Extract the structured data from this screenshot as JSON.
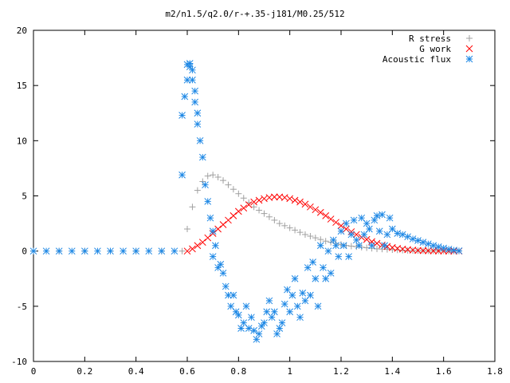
{
  "chart_data": {
    "type": "scatter",
    "title": "m2/n1.5/q2.0/r-+.35-j181/M0.25/512",
    "xlabel": "",
    "ylabel": "",
    "xlim": [
      0,
      1.8
    ],
    "ylim": [
      -10,
      20
    ],
    "x_ticks": [
      "0",
      "0.2",
      "0.4",
      "0.6",
      "0.8",
      "1",
      "1.2",
      "1.4",
      "1.6",
      "1.8"
    ],
    "y_ticks": [
      "-10",
      "-5",
      "0",
      "5",
      "10",
      "15",
      "20"
    ],
    "grid": false,
    "legend_position": "top-right",
    "series": [
      {
        "name": "R stress",
        "marker": "plus",
        "color": "#a0a0a0",
        "x": [
          0.0,
          0.1,
          0.2,
          0.3,
          0.4,
          0.5,
          0.58,
          0.6,
          0.62,
          0.64,
          0.66,
          0.68,
          0.7,
          0.72,
          0.74,
          0.76,
          0.78,
          0.8,
          0.82,
          0.84,
          0.86,
          0.88,
          0.9,
          0.92,
          0.94,
          0.96,
          0.98,
          1.0,
          1.02,
          1.04,
          1.06,
          1.08,
          1.1,
          1.12,
          1.14,
          1.16,
          1.18,
          1.2,
          1.22,
          1.24,
          1.26,
          1.28,
          1.3,
          1.32,
          1.34,
          1.36,
          1.38,
          1.4,
          1.42,
          1.44,
          1.46,
          1.48,
          1.5,
          1.52,
          1.54,
          1.56,
          1.58,
          1.6,
          1.62,
          1.64,
          1.66
        ],
        "y": [
          0,
          0,
          0,
          0,
          0,
          0,
          0,
          2.0,
          4.0,
          5.5,
          6.3,
          6.8,
          6.9,
          6.7,
          6.4,
          6.0,
          5.6,
          5.2,
          4.8,
          4.4,
          4.0,
          3.7,
          3.4,
          3.1,
          2.8,
          2.5,
          2.3,
          2.1,
          1.9,
          1.7,
          1.5,
          1.35,
          1.2,
          1.05,
          0.9,
          0.8,
          0.7,
          0.6,
          0.5,
          0.45,
          0.4,
          0.35,
          0.3,
          0.25,
          0.2,
          0.18,
          0.15,
          0.12,
          0.1,
          0.08,
          0.06,
          0.05,
          0.04,
          0.03,
          0.02,
          0.02,
          0.01,
          0.01,
          0,
          0,
          0
        ]
      },
      {
        "name": "G work",
        "marker": "cross",
        "color": "#ff0000",
        "x": [
          0.6,
          0.62,
          0.64,
          0.66,
          0.68,
          0.7,
          0.72,
          0.74,
          0.76,
          0.78,
          0.8,
          0.82,
          0.84,
          0.86,
          0.88,
          0.9,
          0.92,
          0.94,
          0.96,
          0.98,
          1.0,
          1.02,
          1.04,
          1.06,
          1.08,
          1.1,
          1.12,
          1.14,
          1.16,
          1.18,
          1.2,
          1.22,
          1.24,
          1.26,
          1.28,
          1.3,
          1.32,
          1.34,
          1.36,
          1.38,
          1.4,
          1.42,
          1.44,
          1.46,
          1.48,
          1.5,
          1.52,
          1.54,
          1.56,
          1.58,
          1.6,
          1.62,
          1.64,
          1.66
        ],
        "y": [
          0,
          0.2,
          0.5,
          0.8,
          1.2,
          1.6,
          2.0,
          2.4,
          2.8,
          3.2,
          3.6,
          3.9,
          4.2,
          4.45,
          4.6,
          4.75,
          4.85,
          4.9,
          4.9,
          4.85,
          4.75,
          4.6,
          4.45,
          4.25,
          4.0,
          3.75,
          3.5,
          3.2,
          2.9,
          2.6,
          2.3,
          2.0,
          1.75,
          1.5,
          1.25,
          1.05,
          0.85,
          0.7,
          0.55,
          0.42,
          0.32,
          0.24,
          0.18,
          0.13,
          0.09,
          0.06,
          0.04,
          0.03,
          0.02,
          0.01,
          0.01,
          0,
          0,
          0
        ]
      },
      {
        "name": "Acoustic flux",
        "marker": "star",
        "color": "#1e88e5",
        "x": [
          0.0,
          0.05,
          0.1,
          0.15,
          0.2,
          0.25,
          0.3,
          0.35,
          0.4,
          0.45,
          0.5,
          0.55,
          0.58,
          0.58,
          0.59,
          0.6,
          0.6,
          0.61,
          0.61,
          0.62,
          0.62,
          0.63,
          0.63,
          0.64,
          0.64,
          0.65,
          0.66,
          0.67,
          0.68,
          0.69,
          0.7,
          0.7,
          0.71,
          0.72,
          0.73,
          0.74,
          0.75,
          0.76,
          0.77,
          0.78,
          0.79,
          0.8,
          0.81,
          0.82,
          0.83,
          0.84,
          0.85,
          0.86,
          0.87,
          0.88,
          0.89,
          0.9,
          0.91,
          0.92,
          0.93,
          0.94,
          0.95,
          0.96,
          0.97,
          0.98,
          0.99,
          1.0,
          1.01,
          1.02,
          1.03,
          1.04,
          1.05,
          1.06,
          1.07,
          1.08,
          1.09,
          1.1,
          1.11,
          1.12,
          1.13,
          1.14,
          1.15,
          1.16,
          1.17,
          1.18,
          1.19,
          1.2,
          1.21,
          1.22,
          1.23,
          1.24,
          1.25,
          1.26,
          1.27,
          1.28,
          1.29,
          1.3,
          1.31,
          1.32,
          1.33,
          1.34,
          1.35,
          1.36,
          1.37,
          1.38,
          1.39,
          1.4,
          1.42,
          1.44,
          1.46,
          1.48,
          1.5,
          1.52,
          1.54,
          1.56,
          1.58,
          1.6,
          1.62,
          1.64,
          1.66
        ],
        "y": [
          0,
          0,
          0,
          0,
          0,
          0,
          0,
          0,
          0,
          0,
          0,
          0,
          6.9,
          12.3,
          14.0,
          15.5,
          16.9,
          17.0,
          16.7,
          16.4,
          15.5,
          14.5,
          13.5,
          12.5,
          11.5,
          10.0,
          8.5,
          6.0,
          4.5,
          3.0,
          1.8,
          -0.5,
          0.5,
          -1.5,
          -1.2,
          -2.0,
          -3.2,
          -4.0,
          -5.0,
          -4.0,
          -5.5,
          -5.8,
          -7.0,
          -6.5,
          -5.0,
          -7.0,
          -6.0,
          -7.2,
          -8.0,
          -7.5,
          -6.8,
          -6.5,
          -5.5,
          -4.5,
          -6.0,
          -5.5,
          -7.5,
          -7.0,
          -6.5,
          -4.8,
          -3.5,
          -5.5,
          -4.0,
          -2.5,
          -5.0,
          -6.0,
          -3.8,
          -4.5,
          -1.5,
          -4.0,
          -1.0,
          -2.5,
          -5.0,
          0.5,
          -1.5,
          -2.5,
          0.0,
          -2.0,
          1.0,
          0.5,
          -0.5,
          1.8,
          0.5,
          2.5,
          -0.5,
          1.5,
          2.8,
          1.0,
          0.5,
          3.0,
          1.5,
          2.5,
          2.0,
          0.5,
          2.8,
          3.2,
          1.8,
          3.3,
          0.5,
          1.5,
          3.0,
          2.0,
          1.6,
          1.5,
          1.3,
          1.1,
          0.95,
          0.8,
          0.65,
          0.5,
          0.38,
          0.27,
          0.17,
          0.08,
          0.02
        ]
      }
    ]
  }
}
